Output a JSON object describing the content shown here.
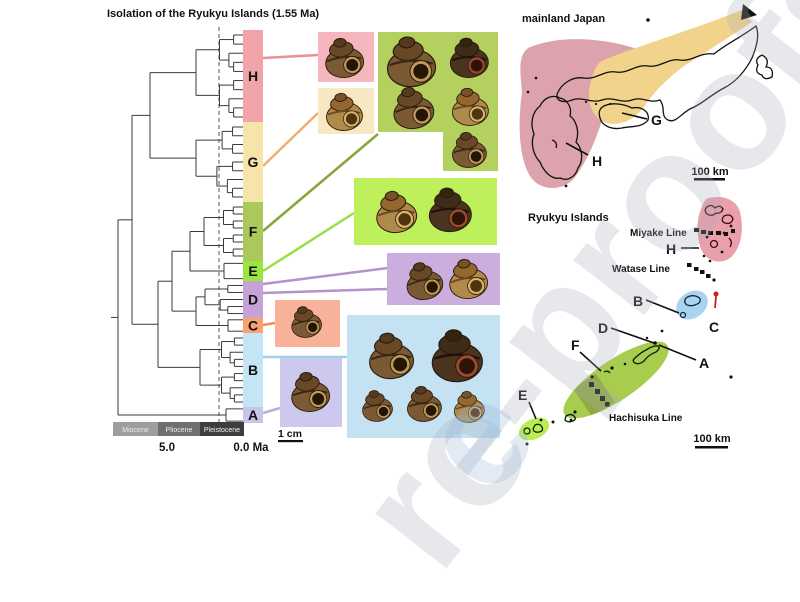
{
  "figure": {
    "title": "Isolation of the Ryukyu Islands (1.55 Ma)",
    "watermark": "re-proofs",
    "watermark2": "e"
  },
  "phylogeny": {
    "clades": [
      {
        "id": "H",
        "label": "H",
        "tips": 10,
        "bar_color": "#f0a3a9",
        "box_color": "#f5b6bd",
        "line_color": "#ec8f97"
      },
      {
        "id": "G",
        "label": "G",
        "tips": 9,
        "bar_color": "#f7e4aa",
        "box_color": "#f7e7c3",
        "line_color": "#f0ae74"
      },
      {
        "id": "F",
        "label": "F",
        "tips": 8,
        "bar_color": "#abc95b",
        "box_color": "#b4d15f",
        "line_color": "#86a63a"
      },
      {
        "id": "E",
        "label": "E",
        "tips": 2,
        "bar_color": "#99e640",
        "box_color": "#bdf05a",
        "line_color": "#98df45"
      },
      {
        "id": "D",
        "label": "D",
        "tips": 5,
        "bar_color": "#c5a3d6",
        "box_color": "#cbaede",
        "line_color": "#b293cb"
      },
      {
        "id": "C",
        "label": "C",
        "tips": 2,
        "bar_color": "#f8a272",
        "box_color": "#f8b29a",
        "line_color": "#f28f66"
      },
      {
        "id": "B",
        "label": "B",
        "tips": 10,
        "bar_color": "#c4e6f4",
        "box_color": "#c4e2f1",
        "line_color": "#a3d0e8"
      },
      {
        "id": "A",
        "label": "A",
        "tips": 2,
        "bar_color": "#c8c4ec",
        "box_color": "#cdc9ee",
        "line_color": "#b5afe3"
      }
    ],
    "timescale": {
      "epochs": [
        {
          "label": "Miocene",
          "color": "#9e9e9e"
        },
        {
          "label": "Pliocene",
          "color": "#6f6f6f"
        },
        {
          "label": "Pleistocene",
          "color": "#3e3e3e"
        }
      ],
      "tick_left": "5.0",
      "tick_right": "0.0 Ma"
    },
    "scale_bar": "1 cm"
  },
  "maps": {
    "mainland": {
      "title": "mainland Japan",
      "labels": {
        "G": "G",
        "H": "H"
      },
      "scale_bar": "100 km",
      "pink": "#dda3ad",
      "yellow": "#f2d38b"
    },
    "ryukyu": {
      "title": "Ryukyu Islands",
      "miyake": "Miyake Line",
      "watase": "Watase Line",
      "hachisuka": "Hachisuka Line",
      "labels": {
        "A": "A",
        "B": "B",
        "C": "C",
        "D": "D",
        "E": "E",
        "F": "F",
        "H": "H"
      },
      "scale_bar": "100 km",
      "pink": "#e9a0aa",
      "blue": "#aad3ee",
      "green": "#a8cc4d",
      "green_dark": "#90aa41",
      "green_bright": "#b9ec55",
      "red": "#cc2010"
    }
  }
}
